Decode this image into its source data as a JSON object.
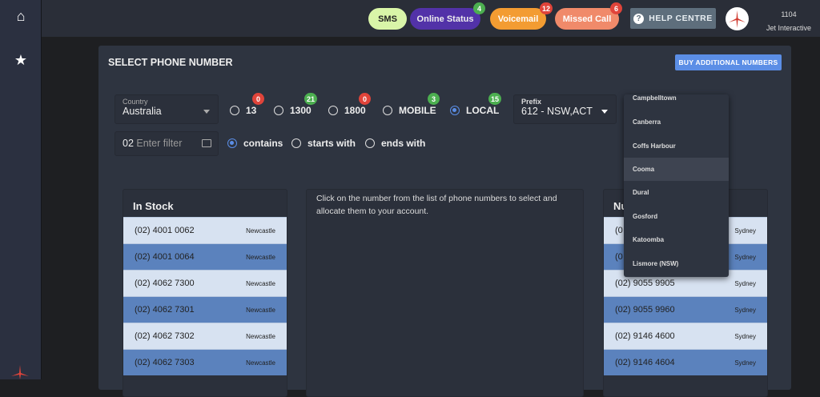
{
  "sidebar": {
    "items": [
      {
        "icon": "home-icon"
      },
      {
        "icon": "star-icon"
      }
    ],
    "logo": "jet-logo"
  },
  "topbar": {
    "sms": "SMS",
    "online_status": {
      "label": "Online Status",
      "badge": "4"
    },
    "voicemail": {
      "label": "Voicemail",
      "badge": "12"
    },
    "missed_call": {
      "label": "Missed Call",
      "badge": "6"
    },
    "help": "HELP CENTRE",
    "account": {
      "id": "1104",
      "name": "Jet Interactive"
    }
  },
  "card": {
    "title": "SELECT PHONE NUMBER",
    "buy_button": "BUY ADDITIONAL NUMBERS",
    "country": {
      "label": "Country",
      "value": "Australia"
    },
    "number_types": [
      {
        "label": "13",
        "count": "0",
        "selected": false
      },
      {
        "label": "1300",
        "count": "21",
        "selected": false
      },
      {
        "label": "1800",
        "count": "0",
        "selected": false
      },
      {
        "label": "MOBILE",
        "count": "3",
        "selected": false
      },
      {
        "label": "LOCAL",
        "count": "15",
        "selected": true
      }
    ],
    "prefix": {
      "label": "Prefix",
      "value": "612 - NSW,ACT"
    },
    "filter": {
      "prefix": "02",
      "placeholder": "Enter filter"
    },
    "match_modes": [
      {
        "label": "contains",
        "selected": true
      },
      {
        "label": "starts with",
        "selected": false
      },
      {
        "label": "ends with",
        "selected": false
      }
    ],
    "instructions": "Click on the number from the list of phone numbers to select and allocate them to your account.",
    "in_stock": {
      "title": "In Stock",
      "rows": [
        {
          "number": "(02) 4001 0062",
          "location": "Newcastle"
        },
        {
          "number": "(02) 4001 0064",
          "location": "Newcastle"
        },
        {
          "number": "(02) 4062 7300",
          "location": "Newcastle"
        },
        {
          "number": "(02) 4062 7301",
          "location": "Newcastle"
        },
        {
          "number": "(02) 4062 7302",
          "location": "Newcastle"
        },
        {
          "number": "(02) 4062 7303",
          "location": "Newcastle"
        }
      ]
    },
    "right_list": {
      "title": "Nu",
      "rows": [
        {
          "number": "(0",
          "location": "Sydney"
        },
        {
          "number": "(0",
          "location": "Sydney"
        },
        {
          "number": "(02) 9055 9905",
          "location": "Sydney"
        },
        {
          "number": "(02) 9055 9960",
          "location": "Sydney"
        },
        {
          "number": "(02) 9146 4600",
          "location": "Sydney"
        },
        {
          "number": "(02) 9146 4604",
          "location": "Sydney"
        }
      ]
    },
    "district_dropdown": {
      "options": [
        "Campbelltown",
        "Canberra",
        "Coffs Harbour",
        "Cooma",
        "Dural",
        "Gosford",
        "Katoomba",
        "Lismore (NSW)"
      ],
      "highlighted": "Cooma"
    }
  },
  "colors": {
    "accent": "#5b8ee6",
    "sms": "#d9f5a8",
    "online": "#5232a8",
    "voicemail": "#f39c32",
    "missed": "#f08a6a"
  }
}
